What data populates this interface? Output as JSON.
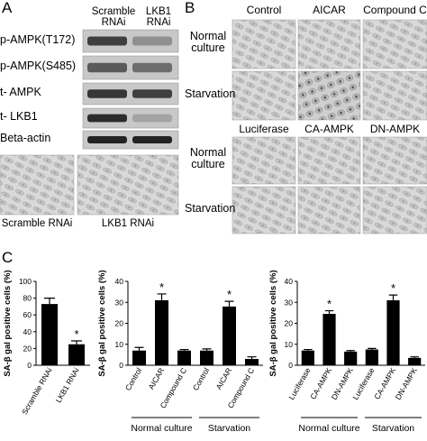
{
  "panel_a": {
    "label": "A",
    "columns": [
      "Scramble RNAi",
      "LKB1 RNAi"
    ],
    "rows": [
      "p-AMPK(T172)",
      "p-AMPK(S485)",
      "t- AMPK",
      "t- LKB1",
      "Beta-actin"
    ],
    "images": [
      "Scramble RNAi",
      "LKB1 RNAi"
    ]
  },
  "panel_b": {
    "label": "B",
    "sets": [
      {
        "columns": [
          "Control",
          "AICAR",
          "Compound C"
        ],
        "rows": [
          "Normal culture",
          "Starvation"
        ]
      },
      {
        "columns": [
          "Luciferase",
          "CA-AMPK",
          "DN-AMPK"
        ],
        "rows": [
          "Normal culture",
          "Starvation"
        ]
      }
    ]
  },
  "panel_c": {
    "label": "C"
  },
  "chart_data": [
    {
      "type": "bar",
      "y_label": "SA-β gal positive cells (%)",
      "categories": [
        "Scramble RNAi",
        "LKB1 RNAi"
      ],
      "values": [
        73,
        25
      ],
      "errors": [
        7,
        4
      ],
      "annotations": [
        null,
        "*"
      ],
      "color": "#000000",
      "ylim": [
        0,
        100
      ],
      "yticks": [
        0,
        20,
        40,
        60,
        80,
        100
      ]
    },
    {
      "type": "bar",
      "y_label": "SA-β gal positive cells (%)",
      "categories": [
        "Control",
        "AICAR",
        "Compound C",
        "Control",
        "AICAR",
        "Compound C"
      ],
      "values": [
        7,
        31,
        7,
        7,
        28,
        3
      ],
      "errors": [
        1.5,
        3,
        0.5,
        0.8,
        2.5,
        1
      ],
      "annotations": [
        null,
        "*",
        null,
        null,
        "*",
        null
      ],
      "color": "#000000",
      "groups": [
        {
          "label": "Normal culture"
        },
        {
          "label": "Starvation"
        }
      ],
      "ylim": [
        0,
        40
      ],
      "yticks": [
        0,
        10,
        20,
        30,
        40
      ]
    },
    {
      "type": "bar",
      "y_label": "SA-β gal positive cells (%)",
      "categories": [
        "Luciferase",
        "CA-AMPK",
        "DN-AMPK",
        "Luciferase",
        "CA-AMPK",
        "DN-AMPK"
      ],
      "values": [
        7,
        24.5,
        6.5,
        7.5,
        31,
        3.5
      ],
      "errors": [
        0.5,
        1.5,
        0.5,
        0.5,
        2.5,
        0.5
      ],
      "annotations": [
        null,
        "*",
        null,
        null,
        "*",
        null
      ],
      "color": "#000000",
      "groups": [
        {
          "label": "Normal culture"
        },
        {
          "label": "Starvation"
        }
      ],
      "ylim": [
        0,
        40
      ],
      "yticks": [
        0,
        10,
        20,
        30,
        40
      ]
    }
  ]
}
